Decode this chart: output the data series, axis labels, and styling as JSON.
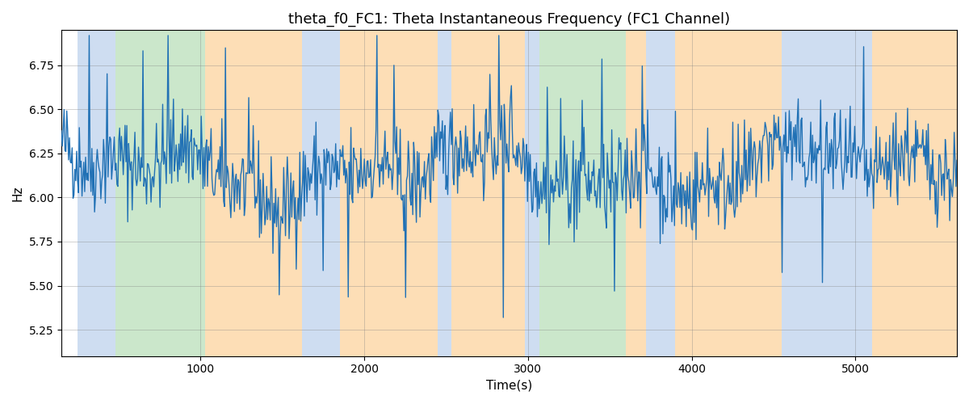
{
  "title": "theta_f0_FC1: Theta Instantaneous Frequency (FC1 Channel)",
  "xlabel": "Time(s)",
  "ylabel": "Hz",
  "xlim": [
    150,
    5620
  ],
  "ylim": [
    5.1,
    6.95
  ],
  "yticks": [
    5.25,
    5.5,
    5.75,
    6.0,
    6.25,
    6.5,
    6.75
  ],
  "xticks": [
    1000,
    2000,
    3000,
    4000,
    5000
  ],
  "line_color": "#2171b5",
  "line_width": 1.0,
  "background_color": "#ffffff",
  "colored_bands": [
    {
      "xmin": 250,
      "xmax": 480,
      "color": "#aec7e8",
      "alpha": 0.6
    },
    {
      "xmin": 480,
      "xmax": 1030,
      "color": "#98d098",
      "alpha": 0.5
    },
    {
      "xmin": 1030,
      "xmax": 1620,
      "color": "#fdbf6f",
      "alpha": 0.5
    },
    {
      "xmin": 1620,
      "xmax": 1850,
      "color": "#aec7e8",
      "alpha": 0.6
    },
    {
      "xmin": 1850,
      "xmax": 2450,
      "color": "#fdbf6f",
      "alpha": 0.5
    },
    {
      "xmin": 2450,
      "xmax": 2530,
      "color": "#aec7e8",
      "alpha": 0.6
    },
    {
      "xmin": 2530,
      "xmax": 2980,
      "color": "#fdbf6f",
      "alpha": 0.5
    },
    {
      "xmin": 2980,
      "xmax": 3070,
      "color": "#aec7e8",
      "alpha": 0.6
    },
    {
      "xmin": 3070,
      "xmax": 3600,
      "color": "#98d098",
      "alpha": 0.5
    },
    {
      "xmin": 3600,
      "xmax": 3720,
      "color": "#fdbf6f",
      "alpha": 0.5
    },
    {
      "xmin": 3720,
      "xmax": 3900,
      "color": "#aec7e8",
      "alpha": 0.6
    },
    {
      "xmin": 3900,
      "xmax": 4550,
      "color": "#fdbf6f",
      "alpha": 0.5
    },
    {
      "xmin": 4550,
      "xmax": 5100,
      "color": "#aec7e8",
      "alpha": 0.6
    },
    {
      "xmin": 5100,
      "xmax": 5620,
      "color": "#fdbf6f",
      "alpha": 0.5
    }
  ],
  "title_fontsize": 13,
  "label_fontsize": 11,
  "seed": 42,
  "n_points": 1000,
  "t_start": 150,
  "t_end": 5620
}
